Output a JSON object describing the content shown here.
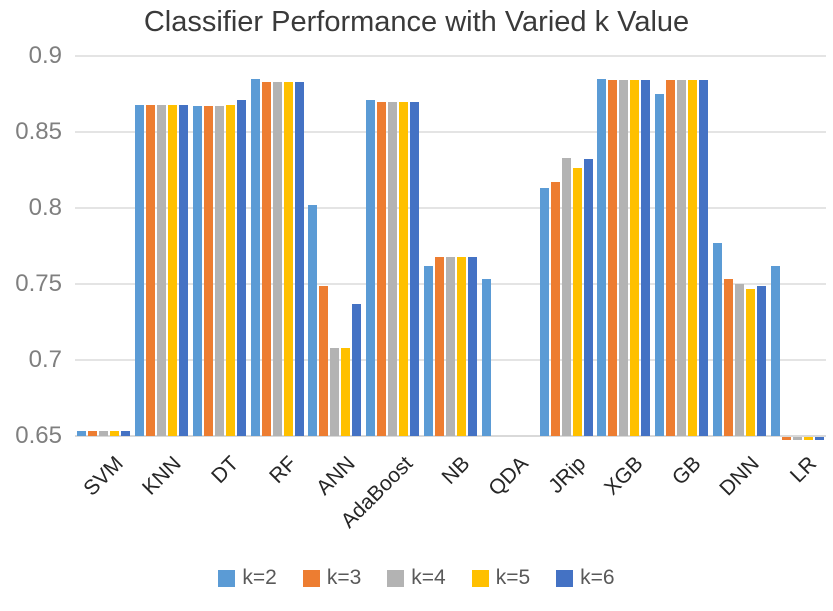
{
  "chart_data": {
    "type": "bar",
    "title": "Classifier Performance with Varied k Value",
    "xlabel": "",
    "ylabel": "",
    "ylim": [
      0.65,
      0.9
    ],
    "baseline": 0.65,
    "grid": true,
    "legend_position": "bottom",
    "y_ticks": [
      "0.9",
      "0.85",
      "0.8",
      "0.75",
      "0.7",
      "0.65"
    ],
    "y_tick_values": [
      0.9,
      0.85,
      0.8,
      0.75,
      0.7,
      0.65
    ],
    "categories": [
      "SVM",
      "KNN",
      "DT",
      "RF",
      "ANN",
      "AdaBoost",
      "NB",
      "QDA",
      "JRip",
      "XGB",
      "GB",
      "DNN",
      "LR"
    ],
    "series": [
      {
        "name": "k=2",
        "color": "#5B9BD5",
        "values": [
          0.653,
          0.868,
          0.867,
          0.885,
          0.802,
          0.871,
          0.762,
          0.753,
          0.813,
          0.885,
          0.875,
          0.777,
          0.762
        ]
      },
      {
        "name": "k=3",
        "color": "#ED7D31",
        "values": [
          0.653,
          0.868,
          0.867,
          0.883,
          0.749,
          0.87,
          0.768,
          null,
          0.817,
          0.884,
          0.884,
          0.753,
          0.648
        ]
      },
      {
        "name": "k=4",
        "color": "#B3B3B3",
        "values": [
          0.653,
          0.868,
          0.867,
          0.883,
          0.708,
          0.87,
          0.768,
          null,
          0.833,
          0.884,
          0.884,
          0.75,
          0.648
        ]
      },
      {
        "name": "k=5",
        "color": "#FFC000",
        "values": [
          0.653,
          0.868,
          0.868,
          0.883,
          0.708,
          0.87,
          0.768,
          null,
          0.826,
          0.884,
          0.884,
          0.747,
          0.648
        ]
      },
      {
        "name": "k=6",
        "color": "#4472C4",
        "values": [
          0.653,
          0.868,
          0.871,
          0.883,
          0.737,
          0.87,
          0.768,
          null,
          0.832,
          0.884,
          0.884,
          0.749,
          0.648
        ]
      }
    ],
    "colors": {
      "gridline": "#e4e4e4",
      "axis_text": "#7f7f7f",
      "category_text": "#262626",
      "title_text": "#3a3a3a",
      "legend_text": "#595959"
    }
  }
}
